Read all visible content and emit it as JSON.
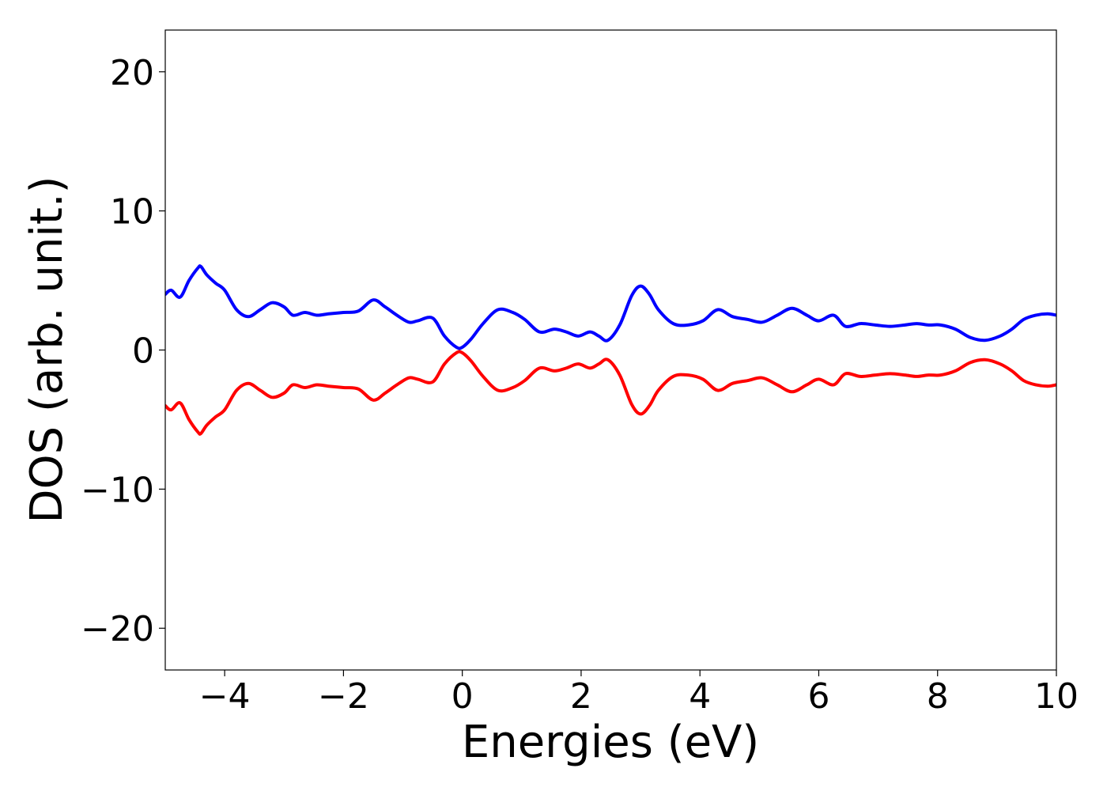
{
  "chart_data": {
    "type": "line",
    "title": "",
    "xlabel": "Energies (eV)",
    "ylabel": "DOS (arb. unit.)",
    "xlim": [
      -5,
      10
    ],
    "ylim": [
      -23,
      23
    ],
    "xticks": [
      -4,
      -2,
      0,
      2,
      4,
      6,
      8,
      10
    ],
    "yticks": [
      -20,
      -10,
      0,
      10,
      20
    ],
    "xtick_labels": [
      "−4",
      "−2",
      "0",
      "2",
      "4",
      "6",
      "8",
      "10"
    ],
    "ytick_labels": [
      "−20",
      "−10",
      "0",
      "10",
      "20"
    ],
    "grid": false,
    "legend": "none",
    "series": [
      {
        "color": "#0000ff",
        "x": [
          -5.0,
          -4.9,
          -4.75,
          -4.6,
          -4.45,
          -4.4,
          -4.3,
          -4.15,
          -4.0,
          -3.8,
          -3.6,
          -3.4,
          -3.2,
          -3.0,
          -2.85,
          -2.65,
          -2.45,
          -2.25,
          -2.0,
          -1.75,
          -1.5,
          -1.3,
          -1.1,
          -0.9,
          -0.75,
          -0.5,
          -0.3,
          -0.1,
          0.0,
          0.15,
          0.35,
          0.6,
          0.85,
          1.05,
          1.3,
          1.55,
          1.75,
          1.95,
          2.15,
          2.3,
          2.45,
          2.65,
          2.85,
          3.0,
          3.15,
          3.3,
          3.55,
          3.8,
          4.05,
          4.3,
          4.55,
          4.8,
          5.05,
          5.3,
          5.55,
          5.8,
          6.0,
          6.25,
          6.45,
          6.7,
          6.95,
          7.2,
          7.45,
          7.65,
          7.85,
          8.05,
          8.3,
          8.55,
          8.8,
          9.05,
          9.25,
          9.45,
          9.65,
          9.85,
          10.0
        ],
        "y": [
          4.0,
          4.3,
          3.8,
          5.0,
          5.9,
          6.0,
          5.4,
          4.8,
          4.3,
          2.9,
          2.4,
          2.9,
          3.4,
          3.1,
          2.5,
          2.7,
          2.5,
          2.6,
          2.7,
          2.8,
          3.6,
          3.1,
          2.5,
          2.0,
          2.1,
          2.3,
          1.0,
          0.2,
          0.2,
          0.8,
          1.9,
          2.9,
          2.7,
          2.2,
          1.3,
          1.5,
          1.3,
          1.0,
          1.3,
          1.0,
          0.7,
          1.8,
          3.9,
          4.6,
          4.0,
          2.9,
          1.9,
          1.8,
          2.1,
          2.9,
          2.4,
          2.2,
          2.0,
          2.5,
          3.0,
          2.5,
          2.1,
          2.5,
          1.7,
          1.9,
          1.8,
          1.7,
          1.8,
          1.9,
          1.8,
          1.8,
          1.5,
          0.9,
          0.7,
          1.0,
          1.5,
          2.2,
          2.5,
          2.6,
          2.5
        ]
      },
      {
        "color": "#ff0000",
        "x": [
          -5.0,
          -4.9,
          -4.75,
          -4.6,
          -4.45,
          -4.4,
          -4.3,
          -4.15,
          -4.0,
          -3.8,
          -3.6,
          -3.4,
          -3.2,
          -3.0,
          -2.85,
          -2.65,
          -2.45,
          -2.25,
          -2.0,
          -1.75,
          -1.5,
          -1.3,
          -1.1,
          -0.9,
          -0.75,
          -0.5,
          -0.3,
          -0.1,
          0.0,
          0.15,
          0.35,
          0.6,
          0.85,
          1.05,
          1.3,
          1.55,
          1.75,
          1.95,
          2.15,
          2.3,
          2.45,
          2.65,
          2.85,
          3.0,
          3.15,
          3.3,
          3.55,
          3.8,
          4.05,
          4.3,
          4.55,
          4.8,
          5.05,
          5.3,
          5.55,
          5.8,
          6.0,
          6.25,
          6.45,
          6.7,
          6.95,
          7.2,
          7.45,
          7.65,
          7.85,
          8.05,
          8.3,
          8.55,
          8.8,
          9.05,
          9.25,
          9.45,
          9.65,
          9.85,
          10.0
        ],
        "y": [
          -4.0,
          -4.3,
          -3.8,
          -5.0,
          -5.9,
          -6.0,
          -5.4,
          -4.8,
          -4.3,
          -2.9,
          -2.4,
          -2.9,
          -3.4,
          -3.1,
          -2.5,
          -2.7,
          -2.5,
          -2.6,
          -2.7,
          -2.8,
          -3.6,
          -3.1,
          -2.5,
          -2.0,
          -2.1,
          -2.3,
          -1.0,
          -0.2,
          -0.2,
          -0.8,
          -1.9,
          -2.9,
          -2.7,
          -2.2,
          -1.3,
          -1.5,
          -1.3,
          -1.0,
          -1.3,
          -1.0,
          -0.7,
          -1.8,
          -3.9,
          -4.6,
          -4.0,
          -2.9,
          -1.9,
          -1.8,
          -2.1,
          -2.9,
          -2.4,
          -2.2,
          -2.0,
          -2.5,
          -3.0,
          -2.5,
          -2.1,
          -2.5,
          -1.7,
          -1.9,
          -1.8,
          -1.7,
          -1.8,
          -1.9,
          -1.8,
          -1.8,
          -1.5,
          -0.9,
          -0.7,
          -1.0,
          -1.5,
          -2.2,
          -2.5,
          -2.6,
          -2.5
        ]
      }
    ]
  }
}
